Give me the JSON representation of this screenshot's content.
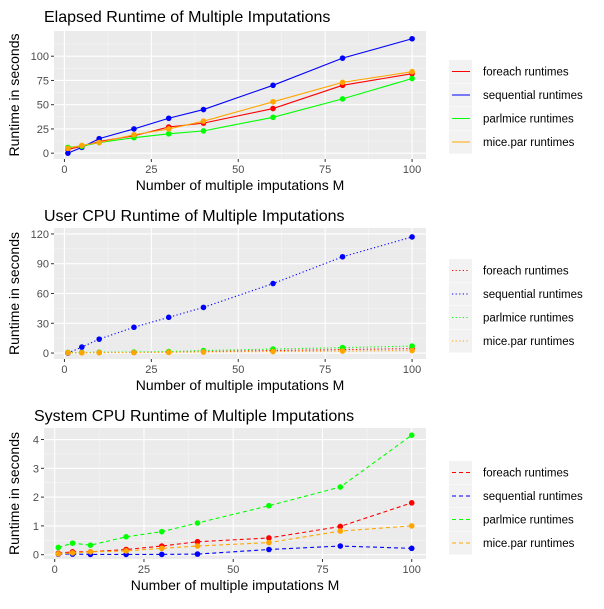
{
  "chart_data": [
    {
      "type": "line",
      "line_style": "solid",
      "title": "Elapsed Runtime of Multiple Imputations",
      "xlabel": "Number of multiple imputations M",
      "ylabel": "Runtime in seconds",
      "xlim": [
        -3,
        104
      ],
      "ylim": [
        -6,
        126
      ],
      "x_ticks": [
        0,
        25,
        50,
        75,
        100
      ],
      "y_ticks": [
        0,
        25,
        50,
        75,
        100
      ],
      "grid": true,
      "legend_position": "right",
      "series": [
        {
          "name": "foreach runtimes",
          "color": "#FF0000",
          "x": [
            1,
            5,
            10,
            20,
            30,
            40,
            60,
            80,
            100
          ],
          "y": [
            4,
            7,
            12,
            18,
            27,
            31,
            46,
            70,
            82
          ]
        },
        {
          "name": "sequential runtimes",
          "color": "#0000FF",
          "x": [
            1,
            5,
            10,
            20,
            30,
            40,
            60,
            80,
            100
          ],
          "y": [
            0,
            6,
            15,
            25,
            36,
            45,
            70,
            98,
            118
          ]
        },
        {
          "name": "parlmice runtimes",
          "color": "#00FF00",
          "x": [
            1,
            5,
            10,
            20,
            30,
            40,
            60,
            80,
            100
          ],
          "y": [
            6,
            7,
            11,
            16,
            20,
            23,
            37,
            56,
            77
          ]
        },
        {
          "name": "mice.par runtimes",
          "color": "#FFA500",
          "x": [
            1,
            5,
            10,
            20,
            30,
            40,
            60,
            80,
            100
          ],
          "y": [
            5,
            8,
            11,
            19,
            25,
            33,
            53,
            73,
            84
          ]
        }
      ]
    },
    {
      "type": "line",
      "line_style": "dotted",
      "title": "User CPU Runtime of Multiple Imputations",
      "xlabel": "Number of multiple imputations M",
      "ylabel": "Runtime in seconds",
      "xlim": [
        -3,
        104
      ],
      "ylim": [
        -6,
        126
      ],
      "x_ticks": [
        0,
        25,
        50,
        75,
        100
      ],
      "y_ticks": [
        0,
        30,
        60,
        90,
        120
      ],
      "grid": true,
      "legend_position": "right",
      "series": [
        {
          "name": "foreach runtimes",
          "color": "#FF0000",
          "x": [
            1,
            5,
            10,
            20,
            30,
            40,
            60,
            80,
            100
          ],
          "y": [
            0.5,
            0.5,
            0.6,
            0.7,
            1,
            1.5,
            2.5,
            3.5,
            4.5
          ]
        },
        {
          "name": "sequential runtimes",
          "color": "#0000FF",
          "x": [
            1,
            5,
            10,
            20,
            30,
            40,
            60,
            80,
            100
          ],
          "y": [
            0,
            6,
            14,
            26,
            36,
            46,
            70,
            97,
            117
          ]
        },
        {
          "name": "parlmice runtimes",
          "color": "#00FF00",
          "x": [
            1,
            5,
            10,
            20,
            30,
            40,
            60,
            80,
            100
          ],
          "y": [
            0.5,
            0.5,
            0.8,
            1,
            1.5,
            2.5,
            4,
            5.5,
            7
          ]
        },
        {
          "name": "mice.par runtimes",
          "color": "#FFA500",
          "x": [
            1,
            5,
            10,
            20,
            30,
            40,
            60,
            80,
            100
          ],
          "y": [
            0.3,
            0.3,
            0.4,
            0.5,
            0.7,
            1,
            1.5,
            2,
            2.5
          ]
        }
      ]
    },
    {
      "type": "line",
      "line_style": "dashed",
      "title": "System CPU Runtime of Multiple Imputations",
      "xlabel": "Number of multiple imputations M",
      "ylabel": "Runtime in seconds",
      "xlim": [
        -3,
        104
      ],
      "ylim": [
        -0.15,
        4.4
      ],
      "x_ticks": [
        0,
        25,
        50,
        75,
        100
      ],
      "y_ticks": [
        0,
        1,
        2,
        3,
        4
      ],
      "grid": true,
      "legend_position": "right",
      "series": [
        {
          "name": "foreach runtimes",
          "color": "#FF0000",
          "x": [
            1,
            5,
            10,
            20,
            30,
            40,
            60,
            80,
            100
          ],
          "y": [
            0.05,
            0.1,
            0.1,
            0.18,
            0.3,
            0.45,
            0.58,
            0.98,
            1.8
          ]
        },
        {
          "name": "sequential runtimes",
          "color": "#0000FF",
          "x": [
            1,
            5,
            10,
            20,
            30,
            40,
            60,
            80,
            100
          ],
          "y": [
            0.02,
            0.02,
            0.01,
            0.01,
            0.01,
            0.02,
            0.18,
            0.3,
            0.22
          ]
        },
        {
          "name": "parlmice runtimes",
          "color": "#00FF00",
          "x": [
            1,
            5,
            10,
            20,
            30,
            40,
            60,
            80,
            100
          ],
          "y": [
            0.25,
            0.4,
            0.33,
            0.62,
            0.8,
            1.1,
            1.7,
            2.35,
            4.15
          ]
        },
        {
          "name": "mice.par runtimes",
          "color": "#FFA500",
          "x": [
            1,
            5,
            10,
            20,
            30,
            40,
            60,
            80,
            100
          ],
          "y": [
            0.03,
            0.06,
            0.1,
            0.13,
            0.22,
            0.3,
            0.42,
            0.82,
            1.0
          ]
        }
      ]
    }
  ]
}
